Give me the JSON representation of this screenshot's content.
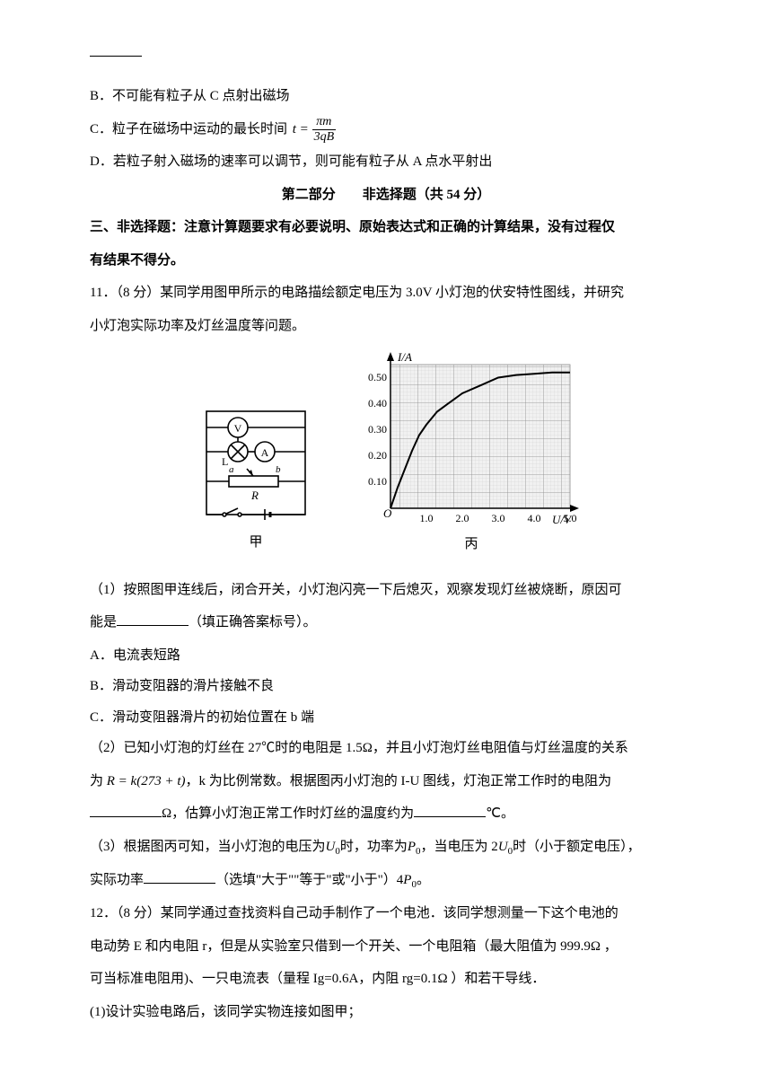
{
  "optB": "B．不可能有粒子从 C 点射出磁场",
  "optC_prefix": "C．粒子在磁场中运动的最长时间",
  "optC_formula": {
    "lhs": "t =",
    "num": "πm",
    "den": "3qB"
  },
  "optD": "D．若粒子射入磁场的速率可以调节，则可能有粒子从 A 点水平射出",
  "section2": "第二部分　　非选择题（共 54 分）",
  "instr1": "三、非选择题：注意计算题要求有必要说明、原始表达式和正确的计算结果，没有过程仅",
  "instr2": "有结果不得分。",
  "q11_l1": "11．（8 分）某同学用图甲所示的电路描绘额定电压为 3.0V 小灯泡的伏安特性图线，并研究",
  "q11_l2": "小灯泡实际功率及灯丝温度等问题。",
  "circuit": {
    "label_V": "V",
    "label_A": "A",
    "label_L": "L",
    "label_a": "a",
    "label_b": "b",
    "label_R": "R",
    "caption": "甲"
  },
  "chart": {
    "type": "line",
    "ylabel": "I/A",
    "xlabel": "U/V",
    "ylim": [
      0,
      0.55
    ],
    "xlim": [
      0,
      5.0
    ],
    "yticks": [
      "0.10",
      "0.20",
      "0.30",
      "0.40",
      "0.50"
    ],
    "xticks": [
      "1.0",
      "2.0",
      "3.0",
      "4.0",
      "5.0"
    ],
    "origin": "O",
    "points": [
      [
        0,
        0
      ],
      [
        0.2,
        0.08
      ],
      [
        0.4,
        0.15
      ],
      [
        0.6,
        0.22
      ],
      [
        0.8,
        0.28
      ],
      [
        1.0,
        0.32
      ],
      [
        1.3,
        0.37
      ],
      [
        1.6,
        0.4
      ],
      [
        2.0,
        0.44
      ],
      [
        2.5,
        0.47
      ],
      [
        3.0,
        0.5
      ],
      [
        3.5,
        0.51
      ],
      [
        4.0,
        0.515
      ],
      [
        4.5,
        0.52
      ],
      [
        5.0,
        0.52
      ]
    ],
    "grid_fill": "#f1f1f1",
    "grid_color": "#8a8a8a",
    "line_color": "#000000",
    "caption": "丙"
  },
  "q11_p1a": "（1）按照图甲连线后，闭合开关，小灯泡闪亮一下后熄灭，观察发现灯丝被烧断，原因可",
  "q11_p1b_pre": "能是",
  "q11_p1b_post": "（填正确答案标号）。",
  "q11_A": "A．电流表短路",
  "q11_B": "B．滑动变阻器的滑片接触不良",
  "q11_C": "C．滑动变阻器滑片的初始位置在 b 端",
  "q11_p2a": "（2）已知小灯泡的灯丝在 27℃时的电阻是 1.5Ω，并且小灯泡灯丝电阻值与灯丝温度的关系",
  "q11_p2b_pre": "为 ",
  "q11_p2b_formula": "R = k(273 + t)",
  "q11_p2b_mid": "，k 为比例常数。根据图丙小灯泡的 I-U 图线，灯泡正常工作时的电阻为",
  "q11_p2c_unit1": "Ω，估算小灯泡正常工作时灯丝的温度约为",
  "q11_p2c_unit2": "℃。",
  "q11_p3a_pre": "（3）根据图丙可知，当小灯泡的电压为",
  "q11_p3a_U0": "U",
  "q11_p3a_mid1": "时，功率为",
  "q11_p3a_P0": "P",
  "q11_p3a_mid2": "，当电压为 2",
  "q11_p3a_mid3": "时（小于额定电压），",
  "q11_p3b_pre": "实际功率",
  "q11_p3b_mid": "（选填\"大于\"\"等于\"或\"小于\"）4",
  "q11_p3b_end": "。",
  "q12_l1": "12．（8 分）某同学通过查找资料自己动手制作了一个电池．该同学想测量一下这个电池的",
  "q12_l2": "电动势 E 和内电阻 r，但是从实验室只借到一个开关、一个电阻箱（最大阻值为 999.9Ω ，",
  "q12_l3": "可当标准电阻用)、一只电流表（量程 Ig=0.6A，内阻 rg=0.1Ω ）和若干导线．",
  "q12_p1": "(1)设计实验电路后，该同学实物连接如图甲；",
  "sub0": "0"
}
